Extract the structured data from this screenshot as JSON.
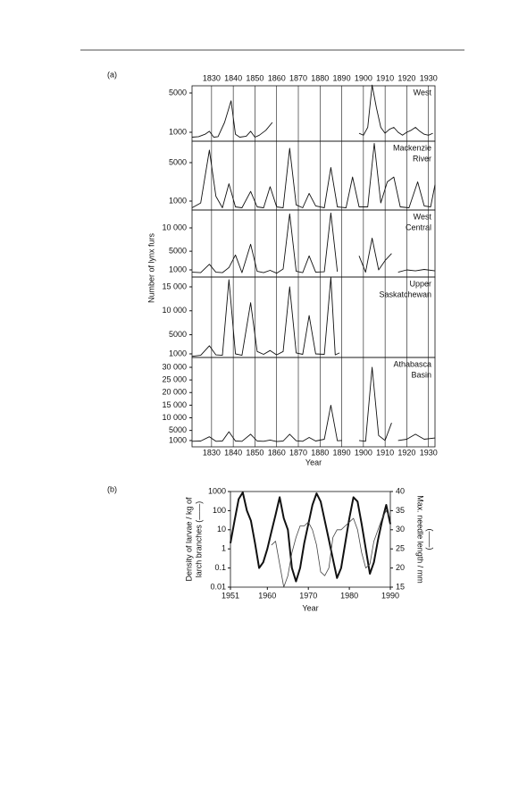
{
  "panel_a": {
    "label": "(a)",
    "ylabel": "Number of lynx furs",
    "xlabel": "Year"
  },
  "panel_b": {
    "label": "(b)"
  },
  "chart_data": [
    {
      "type": "line",
      "title_lines": [
        "West"
      ],
      "xlim": [
        1821,
        1933
      ],
      "xticks": [
        1830,
        1840,
        1850,
        1860,
        1870,
        1880,
        1890,
        1900,
        1910,
        1920,
        1930
      ],
      "ylim": [
        90,
        5730
      ],
      "yticks": [
        1000,
        5000
      ],
      "color": "#111111",
      "x": [
        1821,
        1824,
        1827,
        1829,
        1831,
        1833,
        1836,
        1839,
        1841,
        1843,
        1846,
        1848,
        1850,
        1852,
        1855,
        1858,
        1878,
        1898,
        1900,
        1902,
        1904,
        1906,
        1908,
        1910,
        1912,
        1914,
        1916,
        1918,
        1920,
        1922,
        1924,
        1926,
        1928,
        1930,
        1932
      ],
      "values": [
        500,
        550,
        800,
        1100,
        500,
        550,
        2000,
        4200,
        800,
        500,
        600,
        1100,
        500,
        700,
        1200,
        2000,
        null,
        900,
        700,
        1500,
        5800,
        3500,
        1500,
        900,
        1300,
        1500,
        1000,
        700,
        1000,
        1200,
        1500,
        1100,
        800,
        700,
        900
      ]
    },
    {
      "type": "line",
      "title_lines": [
        "Mackenzie",
        "River"
      ],
      "xlim": [
        1821,
        1933
      ],
      "xticks": [
        1830,
        1840,
        1850,
        1860,
        1870,
        1880,
        1890,
        1900,
        1910,
        1920,
        1930
      ],
      "ylim": [
        70,
        7230
      ],
      "yticks": [
        1000,
        5000
      ],
      "color": "#111111",
      "x": [
        1821,
        1825,
        1829,
        1832,
        1835,
        1838,
        1841,
        1844,
        1848,
        1851,
        1854,
        1857,
        1860,
        1863,
        1866,
        1869,
        1872,
        1875,
        1878,
        1882,
        1885,
        1888,
        1892,
        1895,
        1898,
        1902,
        1905,
        1908,
        1911,
        1914,
        1917,
        1921,
        1925,
        1928,
        1931,
        1933
      ],
      "values": [
        300,
        800,
        6300,
        1500,
        300,
        2800,
        400,
        300,
        2000,
        400,
        300,
        2500,
        400,
        300,
        6500,
        600,
        300,
        1800,
        500,
        300,
        4500,
        400,
        300,
        3500,
        400,
        400,
        7000,
        800,
        3000,
        3500,
        400,
        300,
        3000,
        500,
        400,
        2700
      ]
    },
    {
      "type": "line",
      "title_lines": [
        "West",
        "Central"
      ],
      "xlim": [
        1821,
        1933
      ],
      "xticks": [
        1830,
        1840,
        1850,
        1860,
        1870,
        1880,
        1890,
        1900,
        1910,
        1920,
        1930
      ],
      "ylim": [
        -530,
        13830
      ],
      "yticks": [
        1000,
        5000,
        {
          "value": 10000,
          "label": "10 000"
        }
      ],
      "color": "#111111",
      "x": [
        1821,
        1825,
        1829,
        1832,
        1835,
        1838,
        1841,
        1844,
        1848,
        1851,
        1854,
        1857,
        1860,
        1863,
        1866,
        1869,
        1872,
        1875,
        1878,
        1882,
        1885,
        1888,
        1893,
        1898,
        1901,
        1904,
        1907,
        1910,
        1913,
        1914,
        1916,
        1920,
        1924,
        1928,
        1933
      ],
      "values": [
        500,
        400,
        2200,
        500,
        400,
        1500,
        4200,
        400,
        6500,
        700,
        400,
        900,
        300,
        1200,
        13000,
        700,
        400,
        4000,
        500,
        600,
        13200,
        600,
        null,
        4000,
        500,
        7800,
        1000,
        3000,
        4500,
        null,
        500,
        1000,
        800,
        1100,
        800
      ]
    },
    {
      "type": "line",
      "title_lines": [
        "Upper",
        "Saskatchewan"
      ],
      "xlim": [
        1821,
        1933
      ],
      "xticks": [
        1830,
        1840,
        1850,
        1860,
        1870,
        1880,
        1890,
        1900,
        1910,
        1920,
        1930
      ],
      "ylim": [
        250,
        17050
      ],
      "yticks": [
        1000,
        5000,
        {
          "value": 10000,
          "label": "10 000"
        },
        {
          "value": 15000,
          "label": "15 000"
        }
      ],
      "color": "#111111",
      "x": [
        1821,
        1825,
        1829,
        1832,
        1835,
        1838,
        1841,
        1844,
        1848,
        1851,
        1854,
        1857,
        1860,
        1863,
        1866,
        1869,
        1872,
        1875,
        1878,
        1882,
        1885,
        1887,
        1889
      ],
      "values": [
        500,
        700,
        2700,
        800,
        700,
        16500,
        1000,
        700,
        11700,
        1500,
        900,
        1700,
        800,
        1500,
        15000,
        1200,
        900,
        9000,
        1000,
        900,
        17000,
        800,
        1200
      ]
    },
    {
      "type": "line",
      "title_lines": [
        "Athabasca",
        "Basin"
      ],
      "xlim": [
        1821,
        1933
      ],
      "xticks": [
        1830,
        1840,
        1850,
        1860,
        1870,
        1880,
        1890,
        1900,
        1910,
        1920,
        1930
      ],
      "ylim": [
        -1500,
        33900
      ],
      "yticks": [
        1000,
        5000,
        {
          "value": 10000,
          "label": "10 000"
        },
        {
          "value": 15000,
          "label": "15 000"
        },
        {
          "value": 20000,
          "label": "20 000"
        },
        {
          "value": 25000,
          "label": "25 000"
        },
        {
          "value": 30000,
          "label": "30 000"
        }
      ],
      "color": "#111111",
      "x": [
        1821,
        1825,
        1829,
        1832,
        1835,
        1838,
        1841,
        1844,
        1848,
        1851,
        1854,
        1857,
        1860,
        1863,
        1866,
        1869,
        1872,
        1875,
        1878,
        1882,
        1885,
        1888,
        1890,
        1894,
        1898,
        1901,
        1904,
        1907,
        1910,
        1913,
        1914,
        1916,
        1920,
        1924,
        1928,
        1933
      ],
      "values": [
        700,
        800,
        2500,
        700,
        800,
        4500,
        800,
        700,
        3500,
        800,
        700,
        1200,
        600,
        800,
        3500,
        900,
        700,
        2200,
        800,
        1500,
        15000,
        900,
        1000,
        null,
        1000,
        700,
        30000,
        3000,
        1000,
        8000,
        null,
        1000,
        1500,
        3500,
        1500,
        2000
      ]
    },
    {
      "type": "line",
      "xlabel": "Year",
      "ylabel_lines": [
        "Density of larvae / kg of",
        "larch branches (——)"
      ],
      "y2label_lines": [
        "Max. needle length / mm",
        "(——)"
      ],
      "xlim": [
        1951,
        1990
      ],
      "xticks": [
        1951,
        1960,
        1970,
        1980,
        1990
      ],
      "ylim": [
        0.01,
        1000
      ],
      "yticks": [
        0.01,
        0.1,
        1,
        10,
        100,
        1000
      ],
      "log_y": true,
      "y2lim": [
        15,
        40
      ],
      "y2ticks": [
        15,
        20,
        25,
        30,
        35,
        40
      ],
      "x": [
        1951,
        1952,
        1953,
        1954,
        1955,
        1956,
        1957,
        1958,
        1959,
        1960,
        1961,
        1962,
        1963,
        1964,
        1965,
        1966,
        1967,
        1968,
        1969,
        1970,
        1971,
        1972,
        1973,
        1974,
        1975,
        1976,
        1977,
        1978,
        1979,
        1980,
        1981,
        1982,
        1983,
        1984,
        1985,
        1986,
        1987,
        1988,
        1989,
        1990
      ],
      "series": [
        {
          "color": "#111111",
          "width": 2,
          "values": [
            2,
            30,
            400,
            900,
            100,
            30,
            2,
            0.1,
            0.2,
            1,
            8,
            60,
            500,
            40,
            10,
            0.1,
            0.02,
            0.1,
            2,
            20,
            200,
            800,
            300,
            30,
            3,
            0.3,
            0.03,
            0.1,
            2,
            40,
            500,
            300,
            20,
            1,
            0.05,
            0.2,
            3,
            30,
            200,
            20
          ]
        },
        {
          "color": "#444444",
          "width": 0.8,
          "axis": "y2",
          "values": [
            null,
            null,
            null,
            null,
            null,
            null,
            null,
            null,
            null,
            null,
            26,
            27,
            21,
            15,
            18,
            24,
            28,
            31,
            31,
            32,
            30,
            26,
            19,
            18,
            20,
            28,
            30,
            30,
            31,
            32,
            33,
            30,
            24,
            20,
            21,
            27,
            30,
            33,
            35,
            33
          ]
        }
      ]
    }
  ]
}
